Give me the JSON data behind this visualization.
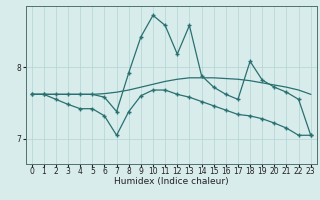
{
  "title": "",
  "xlabel": "Humidex (Indice chaleur)",
  "background_color": "#d8ecec",
  "grid_color": "#b8d8d8",
  "line_color": "#2a7070",
  "x_ticks": [
    0,
    1,
    2,
    3,
    4,
    5,
    6,
    7,
    8,
    9,
    10,
    11,
    12,
    13,
    14,
    15,
    16,
    17,
    18,
    19,
    20,
    21,
    22,
    23
  ],
  "y_ticks": [
    7,
    8
  ],
  "ylim": [
    6.65,
    8.85
  ],
  "xlim": [
    -0.5,
    23.5
  ],
  "series1": [
    7.62,
    7.62,
    7.62,
    7.62,
    7.62,
    7.62,
    7.58,
    7.38,
    7.92,
    8.42,
    8.72,
    8.58,
    8.18,
    8.58,
    7.88,
    7.72,
    7.62,
    7.55,
    8.08,
    7.82,
    7.72,
    7.65,
    7.55,
    7.05
  ],
  "series2": [
    7.62,
    7.62,
    7.55,
    7.48,
    7.42,
    7.42,
    7.32,
    7.05,
    7.38,
    7.6,
    7.68,
    7.68,
    7.62,
    7.58,
    7.52,
    7.46,
    7.4,
    7.34,
    7.32,
    7.28,
    7.22,
    7.15,
    7.05,
    7.05
  ],
  "series3": [
    7.62,
    7.62,
    7.62,
    7.62,
    7.62,
    7.62,
    7.63,
    7.65,
    7.68,
    7.72,
    7.76,
    7.8,
    7.83,
    7.85,
    7.85,
    7.85,
    7.84,
    7.83,
    7.81,
    7.78,
    7.75,
    7.72,
    7.68,
    7.62
  ]
}
